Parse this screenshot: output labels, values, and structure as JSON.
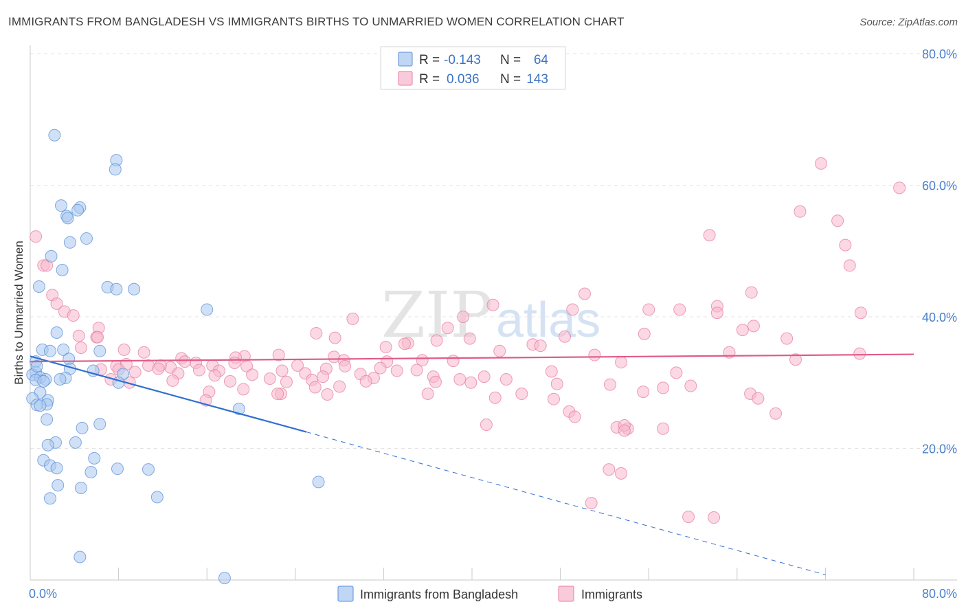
{
  "chart_data": {
    "type": "scatter",
    "title": "IMMIGRANTS FROM BANGLADESH VS IMMIGRANTS BIRTHS TO UNMARRIED WOMEN CORRELATION CHART",
    "source": "Source: ZipAtlas.com",
    "xlabel": "",
    "ylabel": "Births to Unmarried Women",
    "xlim": [
      0,
      80
    ],
    "ylim": [
      0,
      80
    ],
    "x_tick_labels": [
      "0.0%",
      "80.0%"
    ],
    "y_ticks": [
      20,
      40,
      60,
      80
    ],
    "y_tick_labels": [
      "20.0%",
      "40.0%",
      "60.0%",
      "80.0%"
    ],
    "grid": true,
    "watermark": {
      "left": "ZIP",
      "right": "atlas"
    },
    "legend": {
      "r_label": "R =",
      "n_label": "N =",
      "rows": [
        {
          "r": "-0.143",
          "n": "64",
          "color": "#a9c8f0"
        },
        {
          "r": "0.036",
          "n": "143",
          "color": "#f7b8cc"
        }
      ]
    },
    "series": [
      {
        "name": "Immigrants from Bangladesh",
        "color": "#a9c8f0",
        "stroke": "#5b8fd6",
        "trend": {
          "x0": 0,
          "y0": 34.0,
          "x1": 25,
          "y1": 22.5,
          "x_dash_end": 72,
          "y_dash_end": 0.8,
          "color": "#2f6fd0"
        },
        "points": [
          [
            2.2,
            67.6
          ],
          [
            7.8,
            63.8
          ],
          [
            7.7,
            62.4
          ],
          [
            2.8,
            56.9
          ],
          [
            4.5,
            56.6
          ],
          [
            4.3,
            56.2
          ],
          [
            3.3,
            55.3
          ],
          [
            3.4,
            55.0
          ],
          [
            5.1,
            51.9
          ],
          [
            3.6,
            51.3
          ],
          [
            1.9,
            49.2
          ],
          [
            2.9,
            47.1
          ],
          [
            0.8,
            44.6
          ],
          [
            7.0,
            44.5
          ],
          [
            7.8,
            44.2
          ],
          [
            9.4,
            44.2
          ],
          [
            16.0,
            41.1
          ],
          [
            2.4,
            37.6
          ],
          [
            1.1,
            35.0
          ],
          [
            3.0,
            35.0
          ],
          [
            1.8,
            34.8
          ],
          [
            6.3,
            34.8
          ],
          [
            3.5,
            33.6
          ],
          [
            0.5,
            33.2
          ],
          [
            3.6,
            32.1
          ],
          [
            5.7,
            31.8
          ],
          [
            0.5,
            31.6
          ],
          [
            8.4,
            31.3
          ],
          [
            0.2,
            31.2
          ],
          [
            0.9,
            30.8
          ],
          [
            0.5,
            30.4
          ],
          [
            1.4,
            30.5
          ],
          [
            1.2,
            30.2
          ],
          [
            3.2,
            30.7
          ],
          [
            2.7,
            30.5
          ],
          [
            8.0,
            30.0
          ],
          [
            0.9,
            28.5
          ],
          [
            0.2,
            27.6
          ],
          [
            1.6,
            27.3
          ],
          [
            1.5,
            26.7
          ],
          [
            0.6,
            26.6
          ],
          [
            0.9,
            26.5
          ],
          [
            18.9,
            26.0
          ],
          [
            1.5,
            24.4
          ],
          [
            6.3,
            23.7
          ],
          [
            4.7,
            23.1
          ],
          [
            4.1,
            20.9
          ],
          [
            2.3,
            20.9
          ],
          [
            1.6,
            20.5
          ],
          [
            5.8,
            18.5
          ],
          [
            1.2,
            18.2
          ],
          [
            1.8,
            17.4
          ],
          [
            2.4,
            17.0
          ],
          [
            7.9,
            16.9
          ],
          [
            10.7,
            16.8
          ],
          [
            5.5,
            16.4
          ],
          [
            26.1,
            14.9
          ],
          [
            2.5,
            14.4
          ],
          [
            4.6,
            14.0
          ],
          [
            1.8,
            12.4
          ],
          [
            11.5,
            12.6
          ],
          [
            4.5,
            3.5
          ],
          [
            17.6,
            0.3
          ],
          [
            0.6,
            32.5
          ]
        ]
      },
      {
        "name": "Immigrants",
        "color": "#f7b8cc",
        "stroke": "#e57fa0",
        "trend": {
          "x0": 0,
          "y0": 33.2,
          "x1": 80,
          "y1": 34.3,
          "color": "#e05a8a"
        },
        "points": [
          [
            71.6,
            63.3
          ],
          [
            78.7,
            59.6
          ],
          [
            69.7,
            56.0
          ],
          [
            73.1,
            54.6
          ],
          [
            61.5,
            52.4
          ],
          [
            0.5,
            52.2
          ],
          [
            73.8,
            50.9
          ],
          [
            1.2,
            47.8
          ],
          [
            1.5,
            47.8
          ],
          [
            74.2,
            47.8
          ],
          [
            2.0,
            43.3
          ],
          [
            50.2,
            43.5
          ],
          [
            65.3,
            43.7
          ],
          [
            2.4,
            42.0
          ],
          [
            41.9,
            41.8
          ],
          [
            49.1,
            41.1
          ],
          [
            58.8,
            41.1
          ],
          [
            62.2,
            41.6
          ],
          [
            56.0,
            41.1
          ],
          [
            75.2,
            40.6
          ],
          [
            62.2,
            40.6
          ],
          [
            3.1,
            40.8
          ],
          [
            3.9,
            40.2
          ],
          [
            39.2,
            40.0
          ],
          [
            29.2,
            39.7
          ],
          [
            65.5,
            38.6
          ],
          [
            6.2,
            38.3
          ],
          [
            37.8,
            38.3
          ],
          [
            64.5,
            38.0
          ],
          [
            25.9,
            37.5
          ],
          [
            55.6,
            37.4
          ],
          [
            4.4,
            37.1
          ],
          [
            6.0,
            36.9
          ],
          [
            6.1,
            36.9
          ],
          [
            48.4,
            37.0
          ],
          [
            68.5,
            36.7
          ],
          [
            27.6,
            36.8
          ],
          [
            39.8,
            36.7
          ],
          [
            36.8,
            36.4
          ],
          [
            34.2,
            36.0
          ],
          [
            33.9,
            35.9
          ],
          [
            45.5,
            35.8
          ],
          [
            46.2,
            35.6
          ],
          [
            4.6,
            35.3
          ],
          [
            32.2,
            35.4
          ],
          [
            8.5,
            35.0
          ],
          [
            42.5,
            34.8
          ],
          [
            63.3,
            34.6
          ],
          [
            10.3,
            34.6
          ],
          [
            75.1,
            34.4
          ],
          [
            51.1,
            34.2
          ],
          [
            13.7,
            33.7
          ],
          [
            19.4,
            34.0
          ],
          [
            18.6,
            33.8
          ],
          [
            22.5,
            34.2
          ],
          [
            27.5,
            33.9
          ],
          [
            35.5,
            33.4
          ],
          [
            28.4,
            33.4
          ],
          [
            69.3,
            33.5
          ],
          [
            38.3,
            33.3
          ],
          [
            32.3,
            33.2
          ],
          [
            53.5,
            33.1
          ],
          [
            7.8,
            32.5
          ],
          [
            10.7,
            32.6
          ],
          [
            15.0,
            33.0
          ],
          [
            14.0,
            33.2
          ],
          [
            18.5,
            33.0
          ],
          [
            24.2,
            32.6
          ],
          [
            12.7,
            32.3
          ],
          [
            19.6,
            32.5
          ],
          [
            8.7,
            32.8
          ],
          [
            11.8,
            32.6
          ],
          [
            16.5,
            32.6
          ],
          [
            11.6,
            32.1
          ],
          [
            28.5,
            32.5
          ],
          [
            31.7,
            32.2
          ],
          [
            26.8,
            32.1
          ],
          [
            35.0,
            31.9
          ],
          [
            6.4,
            32.0
          ],
          [
            8.0,
            32.0
          ],
          [
            15.3,
            31.9
          ],
          [
            17.1,
            31.8
          ],
          [
            22.8,
            31.8
          ],
          [
            29.9,
            31.3
          ],
          [
            33.2,
            31.8
          ],
          [
            9.5,
            31.6
          ],
          [
            13.4,
            31.4
          ],
          [
            16.7,
            31.1
          ],
          [
            20.1,
            31.2
          ],
          [
            26.5,
            30.9
          ],
          [
            24.9,
            31.4
          ],
          [
            31.1,
            30.7
          ],
          [
            36.5,
            30.9
          ],
          [
            47.2,
            31.7
          ],
          [
            58.5,
            31.5
          ],
          [
            41.1,
            30.9
          ],
          [
            21.7,
            30.6
          ],
          [
            18.1,
            30.2
          ],
          [
            23.2,
            30.1
          ],
          [
            25.5,
            30.4
          ],
          [
            9.0,
            30.0
          ],
          [
            7.3,
            30.5
          ],
          [
            12.9,
            30.3
          ],
          [
            30.4,
            30.2
          ],
          [
            38.9,
            30.5
          ],
          [
            43.1,
            30.5
          ],
          [
            39.9,
            30.0
          ],
          [
            36.7,
            30.1
          ],
          [
            47.7,
            29.8
          ],
          [
            52.5,
            29.7
          ],
          [
            28.0,
            29.4
          ],
          [
            25.8,
            29.3
          ],
          [
            19.3,
            29.0
          ],
          [
            16.2,
            28.6
          ],
          [
            22.7,
            28.3
          ],
          [
            26.9,
            28.2
          ],
          [
            36.0,
            28.3
          ],
          [
            44.5,
            28.3
          ],
          [
            55.5,
            28.6
          ],
          [
            59.8,
            29.5
          ],
          [
            65.2,
            28.3
          ],
          [
            22.4,
            28.3
          ],
          [
            42.1,
            27.7
          ],
          [
            47.4,
            27.5
          ],
          [
            57.3,
            29.2
          ],
          [
            65.9,
            27.6
          ],
          [
            15.9,
            27.3
          ],
          [
            48.8,
            25.6
          ],
          [
            49.3,
            24.8
          ],
          [
            67.5,
            25.3
          ],
          [
            41.3,
            23.6
          ],
          [
            53.1,
            23.2
          ],
          [
            54.1,
            23.0
          ],
          [
            53.8,
            23.5
          ],
          [
            57.3,
            23.0
          ],
          [
            53.8,
            22.7
          ],
          [
            52.4,
            16.8
          ],
          [
            53.5,
            16.2
          ],
          [
            50.8,
            11.7
          ],
          [
            59.6,
            9.6
          ],
          [
            61.9,
            9.5
          ]
        ]
      }
    ]
  }
}
